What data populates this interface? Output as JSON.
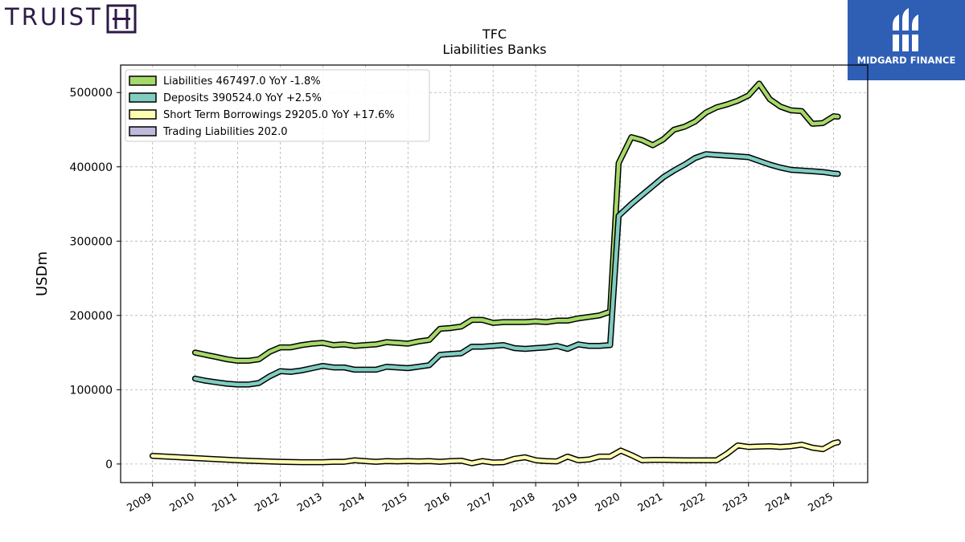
{
  "logos": {
    "left_brand": "TRUIST",
    "right_brand": "MIDGARD FINANCE"
  },
  "colors": {
    "truist_purple": "#2e1a47",
    "midgard_blue": "#2f5eb5",
    "liabilities": "#a6d96a",
    "deposits": "#80cdc1",
    "short_term": "#ffffb3",
    "trading": "#bebada"
  },
  "chart_data": {
    "type": "line",
    "title": "TFC",
    "subtitle": "Liabilities Banks",
    "xlabel": "",
    "ylabel": "USDm",
    "xlim": [
      2008.25,
      2025.8
    ],
    "ylim": [
      -25000,
      537000
    ],
    "yticks": [
      0,
      100000,
      200000,
      300000,
      400000,
      500000
    ],
    "xticks": [
      2009,
      2010,
      2011,
      2012,
      2013,
      2014,
      2015,
      2016,
      2017,
      2018,
      2019,
      2020,
      2021,
      2022,
      2023,
      2024,
      2025
    ],
    "grid": true,
    "legend_position": "top-left",
    "series": [
      {
        "name": "Liabilities",
        "legend": "Liabilities  467497.0 YoY -1.8%",
        "color": "#a6d96a",
        "x": [
          2010.0,
          2010.25,
          2010.5,
          2010.75,
          2011.0,
          2011.25,
          2011.5,
          2011.75,
          2012.0,
          2012.25,
          2012.5,
          2012.75,
          2013.0,
          2013.25,
          2013.5,
          2013.75,
          2014.0,
          2014.25,
          2014.5,
          2014.75,
          2015.0,
          2015.25,
          2015.5,
          2015.75,
          2016.0,
          2016.25,
          2016.5,
          2016.75,
          2017.0,
          2017.25,
          2017.5,
          2017.75,
          2018.0,
          2018.25,
          2018.5,
          2018.75,
          2019.0,
          2019.25,
          2019.5,
          2019.75,
          2019.95,
          2020.25,
          2020.5,
          2020.75,
          2021.0,
          2021.25,
          2021.5,
          2021.75,
          2022.0,
          2022.25,
          2022.5,
          2022.75,
          2023.0,
          2023.25,
          2023.5,
          2023.75,
          2024.0,
          2024.25,
          2024.5,
          2024.75,
          2025.0,
          2025.1
        ],
        "values": [
          150000,
          147000,
          144000,
          141000,
          139000,
          139000,
          141000,
          151000,
          157000,
          157000,
          160000,
          162000,
          163000,
          160000,
          161000,
          159000,
          160000,
          161000,
          164000,
          163000,
          162000,
          165000,
          167000,
          182000,
          183000,
          185000,
          194000,
          194000,
          190000,
          191000,
          191000,
          191000,
          192000,
          191000,
          193000,
          193000,
          196000,
          198000,
          200000,
          205000,
          405000,
          440000,
          436000,
          429000,
          437000,
          450000,
          454000,
          461000,
          473000,
          480000,
          484000,
          489000,
          496000,
          512000,
          491000,
          481000,
          476000,
          475000,
          458000,
          459000,
          468000,
          467497
        ]
      },
      {
        "name": "Deposits",
        "legend": "Deposits  390524.0 YoY +2.5%",
        "color": "#80cdc1",
        "x": [
          2010.0,
          2010.25,
          2010.5,
          2010.75,
          2011.0,
          2011.25,
          2011.5,
          2011.75,
          2012.0,
          2012.25,
          2012.5,
          2012.75,
          2013.0,
          2013.25,
          2013.5,
          2013.75,
          2014.0,
          2014.25,
          2014.5,
          2014.75,
          2015.0,
          2015.25,
          2015.5,
          2015.75,
          2016.0,
          2016.25,
          2016.5,
          2016.75,
          2017.0,
          2017.25,
          2017.5,
          2017.75,
          2018.0,
          2018.25,
          2018.5,
          2018.75,
          2019.0,
          2019.25,
          2019.5,
          2019.75,
          2019.95,
          2020.25,
          2020.5,
          2020.75,
          2021.0,
          2021.25,
          2021.5,
          2021.75,
          2022.0,
          2022.25,
          2022.5,
          2022.75,
          2023.0,
          2023.25,
          2023.5,
          2023.75,
          2024.0,
          2024.25,
          2024.5,
          2024.75,
          2025.0,
          2025.1
        ],
        "values": [
          115000,
          112000,
          110000,
          108000,
          107000,
          107000,
          109000,
          118000,
          125000,
          124000,
          126000,
          129000,
          132000,
          130000,
          130000,
          127000,
          127000,
          127000,
          131000,
          130000,
          129000,
          131000,
          133000,
          147000,
          148000,
          149000,
          158000,
          158000,
          159000,
          160000,
          156000,
          155000,
          156000,
          157000,
          159000,
          155000,
          161000,
          159000,
          159000,
          160000,
          334000,
          350000,
          362000,
          374000,
          386000,
          395000,
          403000,
          412000,
          417000,
          416000,
          415000,
          414000,
          413000,
          408000,
          403000,
          399000,
          396000,
          395000,
          394000,
          393000,
          391000,
          390524
        ]
      },
      {
        "name": "Short Term Borrowings",
        "legend": "Short Term Borrowings  29205.0 YoY +17.6%",
        "color": "#ffffb3",
        "x": [
          2009.0,
          2010.0,
          2011.0,
          2011.5,
          2012.0,
          2012.5,
          2013.0,
          2013.25,
          2013.5,
          2013.75,
          2014.0,
          2014.25,
          2014.5,
          2014.75,
          2015.0,
          2015.25,
          2015.5,
          2015.75,
          2016.0,
          2016.25,
          2016.5,
          2016.75,
          2017.0,
          2017.25,
          2017.5,
          2017.75,
          2018.0,
          2018.25,
          2018.5,
          2018.75,
          2019.0,
          2019.25,
          2019.5,
          2019.75,
          2020.0,
          2020.25,
          2020.5,
          2020.75,
          2021.0,
          2021.5,
          2022.0,
          2022.25,
          2022.5,
          2022.75,
          2023.0,
          2023.25,
          2023.5,
          2023.75,
          2024.0,
          2024.25,
          2024.5,
          2024.75,
          2025.0,
          2025.1
        ],
        "values": [
          11000,
          8000,
          5000,
          4000,
          3000,
          2500,
          2500,
          3000,
          3000,
          5000,
          4000,
          3000,
          4000,
          3500,
          4000,
          3500,
          4000,
          3000,
          4000,
          4500,
          1000,
          4000,
          2000,
          2500,
          7000,
          9000,
          5000,
          4000,
          3500,
          10000,
          5000,
          6000,
          10000,
          10000,
          18000,
          12000,
          5000,
          5500,
          5500,
          5000,
          5000,
          5000,
          14000,
          25000,
          23000,
          23500,
          24000,
          23000,
          24000,
          26000,
          22000,
          20000,
          28000,
          29205
        ]
      },
      {
        "name": "Trading Liabilities",
        "legend": "Trading Liabilities  202.0",
        "color": "#bebada",
        "x": [],
        "values": []
      }
    ]
  }
}
